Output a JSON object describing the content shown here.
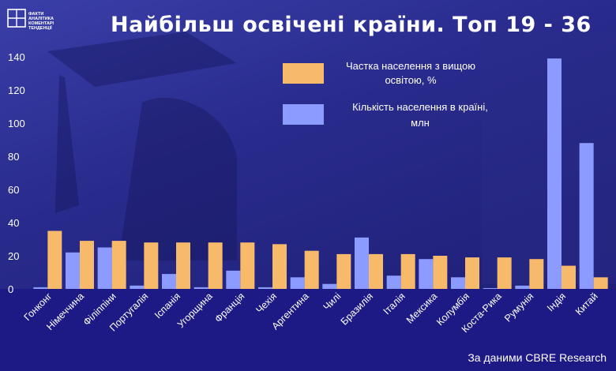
{
  "logo": {
    "mark": "ФАКТ",
    "lines": [
      "ФАКТИ",
      "АНАЛІТИКА",
      "КОМЕНТАРІ",
      "ТЕНДЕНЦІЇ"
    ]
  },
  "footer": {
    "source": "За даними CBRE Research"
  },
  "colors": {
    "share": "#f7b96a",
    "population": "#8c9bff",
    "axis_band": "#1d1a86",
    "background": "#2a2c8e"
  },
  "chart_data": {
    "type": "bar",
    "title": "Найбільш освічені країни. Топ 19 - 36",
    "xlabel": "",
    "ylabel": "",
    "ylim": [
      0,
      140
    ],
    "yticks": [
      0,
      20,
      40,
      60,
      80,
      100,
      120,
      140
    ],
    "grid": false,
    "legend_position": "top-right",
    "categories": [
      "Гонконг",
      "Німеччина",
      "Філіппіни",
      "Португалія",
      "Іспанія",
      "Угорщина",
      "Франція",
      "Чехія",
      "Аргентина",
      "Чилі",
      "Бразилія",
      "Італія",
      "Мексика",
      "Колумбія",
      "Коста-Рика",
      "Румунія",
      "Індія",
      "Китай"
    ],
    "series": [
      {
        "name": "Кількість населення в країні, млн",
        "key": "population",
        "values": [
          1,
          22,
          25,
          2,
          9,
          1,
          11,
          1,
          7,
          3,
          31,
          8,
          18,
          7,
          0.5,
          2,
          139,
          88
        ]
      },
      {
        "name": "Частка населення з вищою освітою, %",
        "key": "share",
        "values": [
          35,
          29,
          29,
          28,
          28,
          28,
          28,
          27,
          23,
          21,
          21,
          21,
          20,
          19,
          19,
          18,
          14,
          7
        ]
      }
    ]
  }
}
